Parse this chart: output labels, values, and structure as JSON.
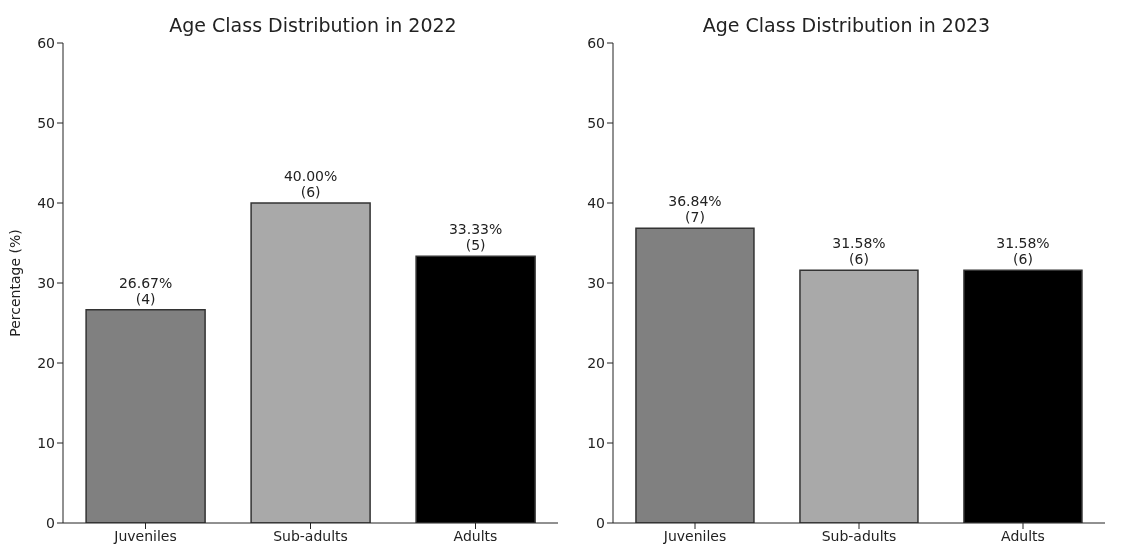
{
  "chart_data": [
    {
      "type": "bar",
      "title": "Age Class Distribution in 2022",
      "ylabel": "Percentage (%)",
      "categories": [
        "Juveniles",
        "Sub-adults",
        "Adults"
      ],
      "values": [
        26.67,
        40.0,
        33.33
      ],
      "colors": [
        "#808080",
        "#a9a9a9",
        "#000000"
      ],
      "value_labels": [
        "26.67%\n(4)",
        "40.00%\n(6)",
        "33.33%\n(5)"
      ],
      "ylim": [
        0,
        60
      ],
      "yticks": [
        0,
        10,
        20,
        30,
        40,
        50,
        60
      ],
      "grid": false,
      "legend": false
    },
    {
      "type": "bar",
      "title": "Age Class Distribution in 2023",
      "categories": [
        "Juveniles",
        "Sub-adults",
        "Adults"
      ],
      "values": [
        36.84,
        31.58,
        31.58
      ],
      "colors": [
        "#808080",
        "#a9a9a9",
        "#000000"
      ],
      "value_labels": [
        "36.84%\n(7)",
        "31.58%\n(6)",
        "31.58%\n(6)"
      ],
      "ylim": [
        0,
        60
      ],
      "yticks": [
        0,
        10,
        20,
        30,
        40,
        50,
        60
      ],
      "grid": false,
      "legend": false
    }
  ]
}
